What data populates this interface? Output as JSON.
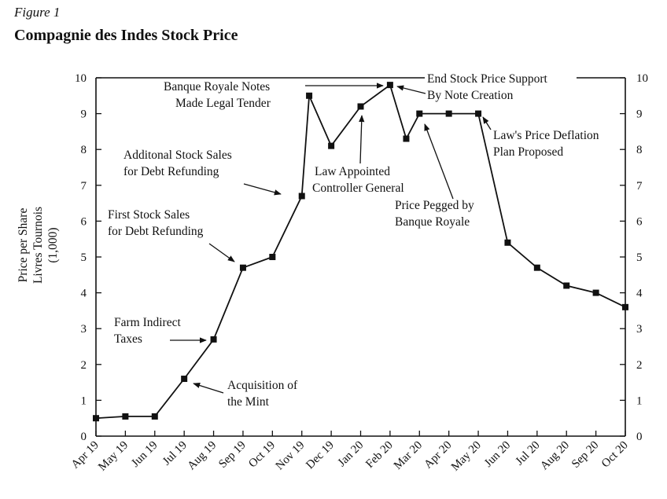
{
  "figure_label": "Figure 1",
  "chart_data": {
    "type": "line",
    "title": "Compagnie des Indes Stock Price",
    "ylabel_lines": [
      "Price per Share",
      "Livres Tournois",
      "(1,000)"
    ],
    "xlabel": "",
    "ylim": [
      0,
      10
    ],
    "yticks": [
      0,
      1,
      2,
      3,
      4,
      5,
      6,
      7,
      8,
      9,
      10
    ],
    "right_axis": true,
    "grid": false,
    "legend": "none",
    "categories": [
      "Apr 19",
      "May 19",
      "Jun 19",
      "Jul 19",
      "Aug 19",
      "Sep 19",
      "Oct 19",
      "Nov 19",
      "Dec 19",
      "Jan 20",
      "Feb 20",
      "Mar 20",
      "Apr 20",
      "May 20",
      "Jun 20",
      "Jul 20",
      "Aug 20",
      "Sep 20",
      "Oct 20"
    ],
    "series": [
      {
        "points": [
          {
            "x": 0,
            "y": 0.5
          },
          {
            "x": 1,
            "y": 0.55
          },
          {
            "x": 2,
            "y": 0.55
          },
          {
            "x": 3,
            "y": 1.6
          },
          {
            "x": 4,
            "y": 2.7
          },
          {
            "x": 5,
            "y": 4.7
          },
          {
            "x": 6,
            "y": 5.0
          },
          {
            "x": 7,
            "y": 6.7
          },
          {
            "x": 7.25,
            "y": 9.5
          },
          {
            "x": 8,
            "y": 8.1
          },
          {
            "x": 9,
            "y": 9.2
          },
          {
            "x": 10,
            "y": 9.8
          },
          {
            "x": 10.55,
            "y": 8.3
          },
          {
            "x": 11,
            "y": 9.0
          },
          {
            "x": 12,
            "y": 9.0
          },
          {
            "x": 13,
            "y": 9.0
          },
          {
            "x": 14,
            "y": 5.4
          },
          {
            "x": 15,
            "y": 4.7
          },
          {
            "x": 16,
            "y": 4.2
          },
          {
            "x": 17,
            "y": 4.0
          },
          {
            "x": 18,
            "y": 3.6
          }
        ]
      }
    ],
    "annotations": [
      {
        "lines": [
          "Banque Royale Notes",
          "Made Legal Tender"
        ]
      },
      {
        "lines": [
          "End Stock Price Support",
          "By Note Creation"
        ]
      },
      {
        "lines": [
          "Additonal Stock Sales",
          "for Debt Refunding"
        ]
      },
      {
        "lines": [
          "First Stock Sales",
          "for Debt Refunding"
        ]
      },
      {
        "lines": [
          "Farm Indirect",
          "Taxes"
        ]
      },
      {
        "lines": [
          "Acquisition of",
          "the Mint"
        ]
      },
      {
        "lines": [
          "Law Appointed",
          "Controller General"
        ]
      },
      {
        "lines": [
          "Price Pegged by",
          "Banque Royale"
        ]
      },
      {
        "lines": [
          "Law's Price Deflation",
          "Plan Proposed"
        ]
      }
    ]
  }
}
